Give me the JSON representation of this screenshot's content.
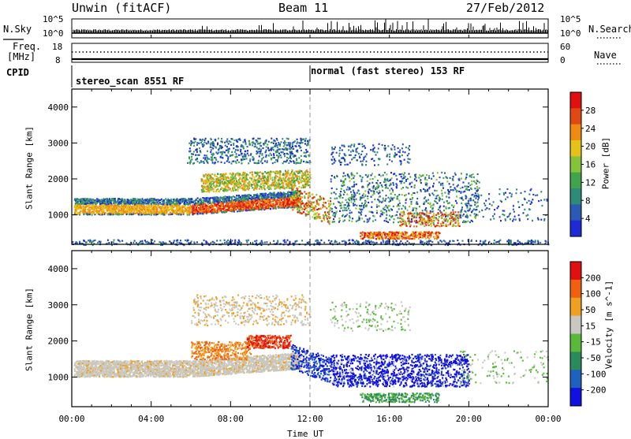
{
  "header": {
    "site": "Unwin (fitACF)",
    "beam": "Beam 11",
    "date": "27/Feb/2012"
  },
  "strip_labels": {
    "nsky": "N.Sky",
    "nsearch": "N.Search",
    "freq_top": "Freq.",
    "freq_unit": "[MHz]",
    "nave": "Nave",
    "cpid": "CPID",
    "nsky_ticks": [
      "10^5",
      "10^0"
    ],
    "nsearch_ticks": [
      "10^5",
      "10^0"
    ],
    "freq_ticks": [
      "18",
      "8"
    ],
    "nave_ticks": [
      "60",
      "0"
    ]
  },
  "cpid_modes": [
    {
      "name": "stereo_scan 8551 RF",
      "start": "00:00",
      "end": "12:00"
    },
    {
      "name": "normal (fast stereo) 153 RF",
      "start": "12:00",
      "end": "24:00"
    }
  ],
  "chart_data": [
    {
      "type": "heatmap",
      "title": "",
      "xlabel": "",
      "ylabel": "Slant Range [km]",
      "xlim": [
        0,
        24
      ],
      "ylim": [
        180,
        4500
      ],
      "yticks": [
        "1000",
        "2000",
        "3000",
        "4000"
      ],
      "colorbar_label": "Power [dB]",
      "colorbar_ticks": [
        "28",
        "24",
        "20",
        "16",
        "12",
        "8",
        "4"
      ],
      "colors": [
        "#1c2bd6",
        "#2a5ab3",
        "#2e8a7a",
        "#3fa44b",
        "#86c23a",
        "#e5c21a",
        "#f08a12",
        "#e04a12",
        "#e01010"
      ]
    },
    {
      "type": "heatmap",
      "title": "",
      "xlabel": "Time UT",
      "ylabel": "Slant Range [km]",
      "xlim": [
        0,
        24
      ],
      "ylim": [
        180,
        4500
      ],
      "xticks": [
        "00:00",
        "04:00",
        "08:00",
        "12:00",
        "16:00",
        "20:00",
        "00:00"
      ],
      "yticks": [
        "1000",
        "2000",
        "3000",
        "4000"
      ],
      "colorbar_label": "Velocity [m s^-1]",
      "colorbar_ticks": [
        "200",
        "100",
        "50",
        "15",
        "-15",
        "-50",
        "-100",
        "-200"
      ],
      "colors": [
        "#1010e0",
        "#2060c0",
        "#2a8a5a",
        "#5ab83a",
        "#c8c8c0",
        "#f0a020",
        "#f06010",
        "#e01010"
      ]
    }
  ]
}
